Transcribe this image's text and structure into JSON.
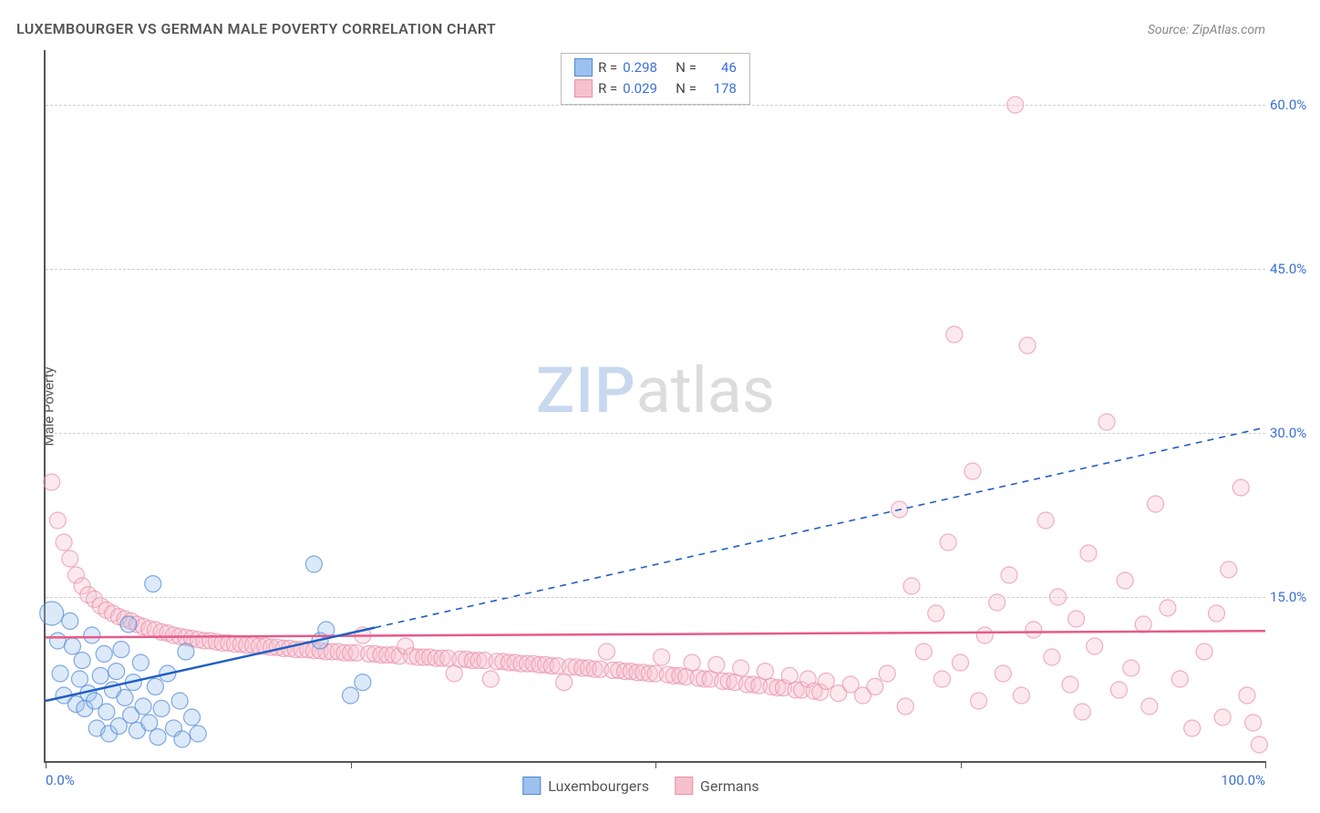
{
  "title": "LUXEMBOURGER VS GERMAN MALE POVERTY CORRELATION CHART",
  "source": "Source: ZipAtlas.com",
  "y_axis_label": "Male Poverty",
  "watermark": {
    "part1": "ZIP",
    "part2": "atlas"
  },
  "chart": {
    "type": "scatter",
    "xlim": [
      0,
      100
    ],
    "ylim": [
      0,
      65
    ],
    "x_ticks": [
      0,
      25,
      50,
      75,
      100
    ],
    "x_tick_labels": {
      "0": "0.0%",
      "100": "100.0%"
    },
    "y_ticks": [
      15,
      30,
      45,
      60
    ],
    "y_tick_labels": {
      "15": "15.0%",
      "30": "30.0%",
      "45": "45.0%",
      "60": "60.0%"
    },
    "grid_color": "#d0d0d0",
    "background_color": "#ffffff",
    "axis_color": "#555555",
    "tick_label_color": "#3a6fd8",
    "marker_radius": 9,
    "marker_radius_large": 13,
    "marker_opacity": 0.35,
    "marker_stroke_opacity": 0.7
  },
  "series": {
    "luxembourgers": {
      "label": "Luxembourgers",
      "color_fill": "#9cc1ef",
      "color_stroke": "#4f87d6",
      "R": "0.298",
      "N": "46",
      "trend_solid": {
        "x1": 0,
        "y1": 5.5,
        "x2": 27,
        "y2": 12.2
      },
      "trend_dashed": {
        "x1": 27,
        "y1": 12.2,
        "x2": 100,
        "y2": 30.5
      },
      "trend_color": "#1e5fc4",
      "trend_width": 2.5,
      "points": [
        [
          0.5,
          13.5,
          13
        ],
        [
          1,
          11,
          9
        ],
        [
          1.2,
          8,
          9
        ],
        [
          1.5,
          6,
          9
        ],
        [
          2,
          12.8,
          9
        ],
        [
          2.2,
          10.5,
          9
        ],
        [
          2.5,
          5.2,
          9
        ],
        [
          2.8,
          7.5,
          9
        ],
        [
          3,
          9.2,
          9
        ],
        [
          3.2,
          4.8,
          9
        ],
        [
          3.5,
          6.2,
          9
        ],
        [
          3.8,
          11.5,
          9
        ],
        [
          4,
          5.5,
          9
        ],
        [
          4.2,
          3,
          9
        ],
        [
          4.5,
          7.8,
          9
        ],
        [
          4.8,
          9.8,
          9
        ],
        [
          5,
          4.5,
          9
        ],
        [
          5.2,
          2.5,
          9
        ],
        [
          5.5,
          6.5,
          9
        ],
        [
          5.8,
          8.2,
          9
        ],
        [
          6,
          3.2,
          9
        ],
        [
          6.2,
          10.2,
          9
        ],
        [
          6.5,
          5.8,
          9
        ],
        [
          6.8,
          12.5,
          9
        ],
        [
          7,
          4.2,
          9
        ],
        [
          7.2,
          7.2,
          9
        ],
        [
          7.5,
          2.8,
          9
        ],
        [
          7.8,
          9,
          9
        ],
        [
          8,
          5,
          9
        ],
        [
          8.5,
          3.5,
          9
        ],
        [
          8.8,
          16.2,
          9
        ],
        [
          9,
          6.8,
          9
        ],
        [
          9.2,
          2.2,
          9
        ],
        [
          9.5,
          4.8,
          9
        ],
        [
          10,
          8,
          9
        ],
        [
          10.5,
          3,
          9
        ],
        [
          11,
          5.5,
          9
        ],
        [
          11.2,
          2,
          9
        ],
        [
          11.5,
          10,
          9
        ],
        [
          12,
          4,
          9
        ],
        [
          12.5,
          2.5,
          9
        ],
        [
          22,
          18,
          9
        ],
        [
          22.5,
          11,
          9
        ],
        [
          25,
          6,
          9
        ],
        [
          23,
          12,
          9
        ],
        [
          26,
          7.2,
          9
        ]
      ]
    },
    "germans": {
      "label": "Germans",
      "color_fill": "#f6c0cd",
      "color_stroke": "#e98fa8",
      "R": "0.029",
      "N": "178",
      "trend_solid": {
        "x1": 0,
        "y1": 11.3,
        "x2": 100,
        "y2": 11.9
      },
      "trend_color": "#e65a8a",
      "trend_width": 2.5,
      "points": [
        [
          0.5,
          25.5,
          9
        ],
        [
          1,
          22,
          9
        ],
        [
          1.5,
          20,
          9
        ],
        [
          2,
          18.5,
          9
        ],
        [
          2.5,
          17,
          9
        ],
        [
          3,
          16,
          9
        ],
        [
          3.5,
          15.2,
          9
        ],
        [
          4,
          14.8,
          9
        ],
        [
          4.5,
          14.2,
          9
        ],
        [
          5,
          13.8,
          9
        ],
        [
          5.5,
          13.5,
          9
        ],
        [
          6,
          13.2,
          9
        ],
        [
          6.5,
          13,
          9
        ],
        [
          7,
          12.8,
          9
        ],
        [
          7.5,
          12.5,
          9
        ],
        [
          8,
          12.3,
          9
        ],
        [
          8.5,
          12.1,
          9
        ],
        [
          9,
          12,
          9
        ],
        [
          9.5,
          11.8,
          9
        ],
        [
          10,
          11.7,
          9
        ],
        [
          10.5,
          11.5,
          9
        ],
        [
          11,
          11.4,
          9
        ],
        [
          11.5,
          11.3,
          9
        ],
        [
          12,
          11.2,
          9
        ],
        [
          12.5,
          11.1,
          9
        ],
        [
          13,
          11,
          9
        ],
        [
          13.5,
          11,
          9
        ],
        [
          14,
          10.9,
          9
        ],
        [
          14.5,
          10.8,
          9
        ],
        [
          15,
          10.8,
          9
        ],
        [
          15.5,
          10.7,
          9
        ],
        [
          16,
          10.7,
          9
        ],
        [
          16.5,
          10.6,
          9
        ],
        [
          17,
          10.6,
          9
        ],
        [
          17.5,
          10.5,
          9
        ],
        [
          18,
          10.5,
          9
        ],
        [
          18.5,
          10.4,
          9
        ],
        [
          19,
          10.4,
          9
        ],
        [
          19.5,
          10.3,
          9
        ],
        [
          20,
          10.3,
          9
        ],
        [
          20.5,
          10.2,
          9
        ],
        [
          21,
          10.2,
          9
        ],
        [
          21.5,
          10.2,
          9
        ],
        [
          22,
          10.1,
          9
        ],
        [
          22.5,
          10.1,
          9
        ],
        [
          23,
          10,
          9
        ],
        [
          23.5,
          10,
          9
        ],
        [
          24,
          10,
          9
        ],
        [
          24.5,
          9.9,
          9
        ],
        [
          25,
          9.9,
          9
        ],
        [
          25.5,
          9.9,
          9
        ],
        [
          26,
          11.5,
          9
        ],
        [
          26.5,
          9.8,
          9
        ],
        [
          27,
          9.8,
          9
        ],
        [
          27.5,
          9.7,
          9
        ],
        [
          28,
          9.7,
          9
        ],
        [
          28.5,
          9.7,
          9
        ],
        [
          29,
          9.6,
          9
        ],
        [
          29.5,
          10.5,
          9
        ],
        [
          30,
          9.6,
          9
        ],
        [
          30.5,
          9.5,
          9
        ],
        [
          31,
          9.5,
          9
        ],
        [
          31.5,
          9.5,
          9
        ],
        [
          32,
          9.4,
          9
        ],
        [
          32.5,
          9.4,
          9
        ],
        [
          33,
          9.4,
          9
        ],
        [
          33.5,
          8,
          9
        ],
        [
          34,
          9.3,
          9
        ],
        [
          34.5,
          9.3,
          9
        ],
        [
          35,
          9.2,
          9
        ],
        [
          35.5,
          9.2,
          9
        ],
        [
          36,
          9.2,
          9
        ],
        [
          36.5,
          7.5,
          9
        ],
        [
          37,
          9.1,
          9
        ],
        [
          37.5,
          9.1,
          9
        ],
        [
          38,
          9,
          9
        ],
        [
          38.5,
          9,
          9
        ],
        [
          39,
          8.9,
          9
        ],
        [
          39.5,
          8.9,
          9
        ],
        [
          40,
          8.9,
          9
        ],
        [
          40.5,
          8.8,
          9
        ],
        [
          41,
          8.8,
          9
        ],
        [
          41.5,
          8.7,
          9
        ],
        [
          42,
          8.7,
          9
        ],
        [
          42.5,
          7.2,
          9
        ],
        [
          43,
          8.6,
          9
        ],
        [
          43.5,
          8.6,
          9
        ],
        [
          44,
          8.5,
          9
        ],
        [
          44.5,
          8.5,
          9
        ],
        [
          45,
          8.4,
          9
        ],
        [
          45.5,
          8.4,
          9
        ],
        [
          46,
          10,
          9
        ],
        [
          46.5,
          8.3,
          9
        ],
        [
          47,
          8.3,
          9
        ],
        [
          47.5,
          8.2,
          9
        ],
        [
          48,
          8.2,
          9
        ],
        [
          48.5,
          8.1,
          9
        ],
        [
          49,
          8.1,
          9
        ],
        [
          49.5,
          8,
          9
        ],
        [
          50,
          8,
          9
        ],
        [
          50.5,
          9.5,
          9
        ],
        [
          51,
          7.9,
          9
        ],
        [
          51.5,
          7.8,
          9
        ],
        [
          52,
          7.8,
          9
        ],
        [
          52.5,
          7.7,
          9
        ],
        [
          53,
          9,
          9
        ],
        [
          53.5,
          7.6,
          9
        ],
        [
          54,
          7.5,
          9
        ],
        [
          54.5,
          7.5,
          9
        ],
        [
          55,
          8.8,
          9
        ],
        [
          55.5,
          7.3,
          9
        ],
        [
          56,
          7.3,
          9
        ],
        [
          56.5,
          7.2,
          9
        ],
        [
          57,
          8.5,
          9
        ],
        [
          57.5,
          7,
          9
        ],
        [
          58,
          7,
          9
        ],
        [
          58.5,
          6.9,
          9
        ],
        [
          59,
          8.2,
          9
        ],
        [
          59.5,
          6.8,
          9
        ],
        [
          60,
          6.7,
          9
        ],
        [
          60.5,
          6.7,
          9
        ],
        [
          61,
          7.8,
          9
        ],
        [
          61.5,
          6.5,
          9
        ],
        [
          62,
          6.5,
          9
        ],
        [
          62.5,
          7.5,
          9
        ],
        [
          63,
          6.4,
          9
        ],
        [
          63.5,
          6.3,
          9
        ],
        [
          64,
          7.3,
          9
        ],
        [
          65,
          6.2,
          9
        ],
        [
          66,
          7,
          9
        ],
        [
          67,
          6,
          9
        ],
        [
          68,
          6.8,
          9
        ],
        [
          69,
          8,
          9
        ],
        [
          70,
          23,
          9
        ],
        [
          70.5,
          5,
          9
        ],
        [
          71,
          16,
          9
        ],
        [
          72,
          10,
          9
        ],
        [
          73,
          13.5,
          9
        ],
        [
          73.5,
          7.5,
          9
        ],
        [
          74,
          20,
          9
        ],
        [
          74.5,
          39,
          9
        ],
        [
          75,
          9,
          9
        ],
        [
          76,
          26.5,
          9
        ],
        [
          76.5,
          5.5,
          9
        ],
        [
          77,
          11.5,
          9
        ],
        [
          78,
          14.5,
          9
        ],
        [
          78.5,
          8,
          9
        ],
        [
          79,
          17,
          9
        ],
        [
          79.5,
          60,
          9
        ],
        [
          80,
          6,
          9
        ],
        [
          80.5,
          38,
          9
        ],
        [
          81,
          12,
          9
        ],
        [
          82,
          22,
          9
        ],
        [
          82.5,
          9.5,
          9
        ],
        [
          83,
          15,
          9
        ],
        [
          84,
          7,
          9
        ],
        [
          84.5,
          13,
          9
        ],
        [
          85,
          4.5,
          9
        ],
        [
          85.5,
          19,
          9
        ],
        [
          86,
          10.5,
          9
        ],
        [
          87,
          31,
          9
        ],
        [
          88,
          6.5,
          9
        ],
        [
          88.5,
          16.5,
          9
        ],
        [
          89,
          8.5,
          9
        ],
        [
          90,
          12.5,
          9
        ],
        [
          90.5,
          5,
          9
        ],
        [
          91,
          23.5,
          9
        ],
        [
          92,
          14,
          9
        ],
        [
          93,
          7.5,
          9
        ],
        [
          94,
          3,
          9
        ],
        [
          95,
          10,
          9
        ],
        [
          96,
          13.5,
          9
        ],
        [
          96.5,
          4,
          9
        ],
        [
          97,
          17.5,
          9
        ],
        [
          98,
          25,
          9
        ],
        [
          98.5,
          6,
          9
        ],
        [
          99,
          3.5,
          9
        ],
        [
          99.5,
          1.5,
          9
        ]
      ]
    }
  },
  "correlation_box": {
    "r_label": "R =",
    "n_label": "N ="
  },
  "bottom_legend": {
    "items": [
      "luxembourgers",
      "germans"
    ]
  }
}
